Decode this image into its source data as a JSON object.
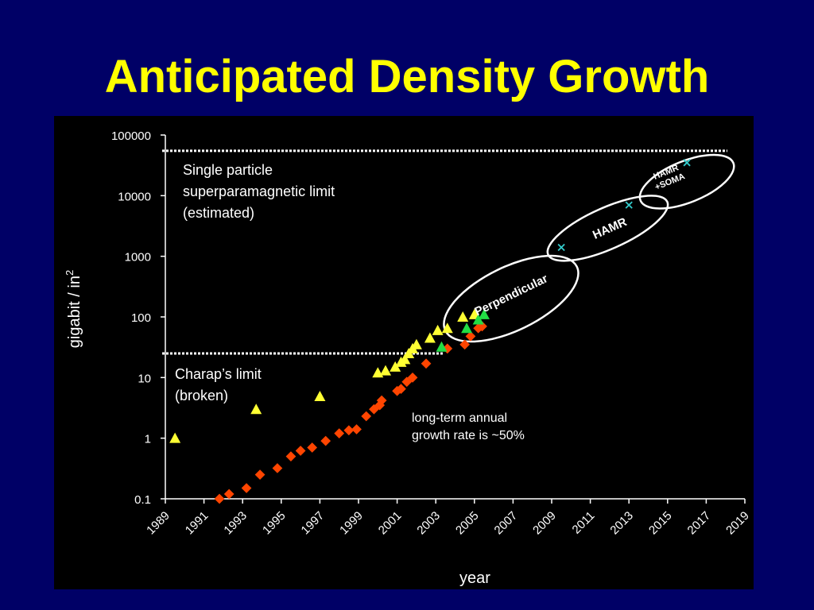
{
  "slide": {
    "title": "Anticipated Density Growth"
  },
  "chart_data": {
    "type": "scatter",
    "xlabel": "year",
    "ylabel": "gigabit / in",
    "ylabel_superscript": "2",
    "y_scale": "log",
    "xlim": [
      1989,
      2019
    ],
    "ylim": [
      0.1,
      100000
    ],
    "x_ticks": [
      "1989",
      "1991",
      "1993",
      "1995",
      "1997",
      "1999",
      "2001",
      "2003",
      "2005",
      "2007",
      "2009",
      "2011",
      "2013",
      "2015",
      "2017",
      "2019"
    ],
    "y_ticks": [
      "0.1",
      "1",
      "10",
      "100",
      "1000",
      "10000",
      "100000"
    ],
    "reference_lines": [
      {
        "value": 55000,
        "label_lines": [
          "Single particle",
          "superparamagnetic limit",
          "(estimated)"
        ]
      },
      {
        "value": 25,
        "x_end": 2003,
        "label_lines": [
          "Charap’s limit",
          "(broken)"
        ]
      }
    ],
    "annotation_lines": [
      "long-term annual",
      "growth rate is ~50%"
    ],
    "regions": [
      {
        "label_lines": [
          "Perpendicular"
        ]
      },
      {
        "label_lines": [
          "HAMR"
        ]
      },
      {
        "label_lines": [
          "HAMR",
          "+SOMA"
        ]
      }
    ],
    "series": [
      {
        "marker": "diamond",
        "color": "#ff4500",
        "points": [
          [
            1991.8,
            0.1
          ],
          [
            1992.3,
            0.12
          ],
          [
            1993.2,
            0.15
          ],
          [
            1993.9,
            0.25
          ],
          [
            1994.8,
            0.32
          ],
          [
            1995.5,
            0.5
          ],
          [
            1996.0,
            0.62
          ],
          [
            1996.6,
            0.7
          ],
          [
            1997.3,
            0.9
          ],
          [
            1998.0,
            1.2
          ],
          [
            1998.5,
            1.35
          ],
          [
            1998.9,
            1.4
          ],
          [
            1999.4,
            2.3
          ],
          [
            1999.8,
            3.0
          ],
          [
            2000.1,
            3.5
          ],
          [
            2000.2,
            4.2
          ],
          [
            2001.0,
            6.0
          ],
          [
            2001.2,
            6.5
          ],
          [
            2001.5,
            8.5
          ],
          [
            2001.8,
            10.0
          ],
          [
            2002.5,
            17.0
          ],
          [
            2003.6,
            30.0
          ],
          [
            2004.5,
            35.0
          ],
          [
            2004.8,
            48.0
          ],
          [
            2005.2,
            65.0
          ],
          [
            2005.4,
            70.0
          ]
        ]
      },
      {
        "marker": "triangle",
        "color": "#ffff33",
        "points": [
          [
            1989.5,
            1.0
          ],
          [
            1993.7,
            3.0
          ],
          [
            1997.0,
            4.9
          ],
          [
            2000.0,
            12.0
          ],
          [
            2000.4,
            13.0
          ],
          [
            2000.9,
            15.0
          ],
          [
            2001.2,
            18.0
          ],
          [
            2001.4,
            20.0
          ],
          [
            2001.6,
            25.0
          ],
          [
            2001.8,
            30.0
          ],
          [
            2002.0,
            35.0
          ],
          [
            2002.7,
            45.0
          ],
          [
            2003.1,
            60.0
          ],
          [
            2003.6,
            65.0
          ],
          [
            2004.4,
            100.0
          ],
          [
            2005.0,
            110.0
          ]
        ]
      },
      {
        "marker": "triangle",
        "color": "#22dd44",
        "points": [
          [
            2003.3,
            32.0
          ],
          [
            2004.6,
            65.0
          ],
          [
            2005.2,
            90.0
          ],
          [
            2005.5,
            110.0
          ]
        ]
      },
      {
        "marker": "x",
        "color": "#33cccc",
        "points": [
          [
            2009.5,
            1400.0
          ],
          [
            2013.0,
            7000.0
          ],
          [
            2016.0,
            35000.0
          ]
        ]
      }
    ]
  }
}
